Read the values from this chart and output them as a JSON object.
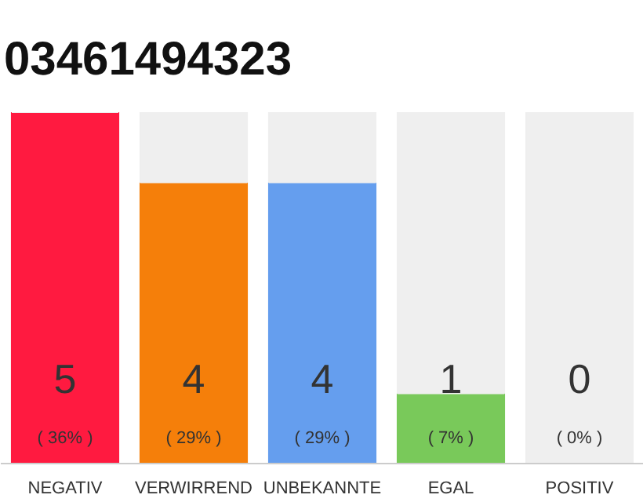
{
  "chart_data": {
    "type": "bar",
    "title": "03461494323",
    "stacked": true,
    "categories": [
      "NEGATIV",
      "VERWIRREND",
      "UNBEKANNTE",
      "EGAL",
      "POSITIV"
    ],
    "series": [
      {
        "colors": [
          "#ff1a40",
          "#f57f0a",
          "#659eee",
          "#79c95a",
          "#cccccc"
        ],
        "values": [
          5,
          4,
          4,
          1,
          0
        ],
        "value_labels": [
          "5\n( 36% )",
          "4\n( 29% )",
          "4\n( 29% )",
          "1\n( 7% )",
          "0\n( 0% )"
        ]
      },
      {
        "color": "#efefef",
        "values": [
          0,
          1,
          1,
          4,
          5
        ]
      }
    ],
    "ylim": [
      0,
      5
    ],
    "tick_labels": "x",
    "grid": false
  }
}
